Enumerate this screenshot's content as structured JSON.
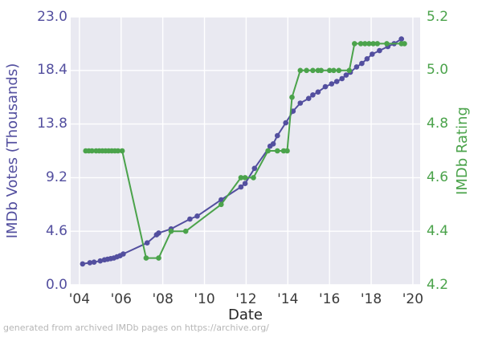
{
  "footer": {
    "text": "generated from archived IMDb pages on https://archive.org/"
  },
  "chart_data": {
    "type": "line",
    "title": "",
    "xlabel": "Date",
    "grid": true,
    "legend_position": "none",
    "plot_background": "#e9e9f1",
    "grid_color": "#ffffff",
    "x_tick_labels": [
      "'04",
      "'06",
      "'08",
      "'10",
      "'12",
      "'14",
      "'16",
      "'18",
      "'20"
    ],
    "x_tick_years": [
      2004,
      2006,
      2008,
      2010,
      2012,
      2014,
      2016,
      2018,
      2020
    ],
    "x_range": [
      2003.58,
      2020.35
    ],
    "left_axis": {
      "label": "IMDb Votes (Thousands)",
      "color": "#534f9f",
      "tick_labels": [
        "23.0",
        "18.4",
        "13.8",
        "9.2",
        "4.6",
        "0.0"
      ],
      "tick_values": [
        23.0,
        18.4,
        13.8,
        9.2,
        4.6,
        0.0
      ],
      "range": [
        0,
        23
      ]
    },
    "right_axis": {
      "label": "IMDb Rating",
      "color": "#4ba34b",
      "tick_labels": [
        "5.2",
        "5.0",
        "4.8",
        "4.6",
        "4.4",
        "4.2"
      ],
      "tick_values": [
        5.2,
        5.0,
        4.8,
        4.6,
        4.4,
        4.2
      ],
      "range": [
        4.2,
        5.2
      ]
    },
    "series": [
      {
        "name": "IMDb Votes (Thousands)",
        "axis": "left",
        "color": "#534f9f",
        "marker_radius": 3.3,
        "points": [
          [
            2004.15,
            1.8
          ],
          [
            2004.5,
            1.9
          ],
          [
            2004.7,
            1.95
          ],
          [
            2005.0,
            2.05
          ],
          [
            2005.2,
            2.15
          ],
          [
            2005.35,
            2.2
          ],
          [
            2005.5,
            2.25
          ],
          [
            2005.65,
            2.3
          ],
          [
            2005.8,
            2.4
          ],
          [
            2005.95,
            2.5
          ],
          [
            2006.1,
            2.65
          ],
          [
            2007.25,
            3.6
          ],
          [
            2007.7,
            4.3
          ],
          [
            2007.8,
            4.45
          ],
          [
            2008.4,
            4.8
          ],
          [
            2009.3,
            5.65
          ],
          [
            2009.65,
            5.9
          ],
          [
            2010.8,
            7.3
          ],
          [
            2011.75,
            8.4
          ],
          [
            2011.95,
            8.7
          ],
          [
            2012.4,
            10.0
          ],
          [
            2013.15,
            11.9
          ],
          [
            2013.3,
            12.1
          ],
          [
            2013.5,
            12.8
          ],
          [
            2013.9,
            13.9
          ],
          [
            2014.25,
            14.9
          ],
          [
            2014.6,
            15.6
          ],
          [
            2015.0,
            16.0
          ],
          [
            2015.2,
            16.3
          ],
          [
            2015.45,
            16.55
          ],
          [
            2015.8,
            17.0
          ],
          [
            2016.1,
            17.25
          ],
          [
            2016.35,
            17.45
          ],
          [
            2016.6,
            17.7
          ],
          [
            2016.8,
            18.0
          ],
          [
            2017.0,
            18.25
          ],
          [
            2017.3,
            18.7
          ],
          [
            2017.55,
            19.0
          ],
          [
            2017.8,
            19.4
          ],
          [
            2018.05,
            19.8
          ],
          [
            2018.4,
            20.1
          ],
          [
            2018.8,
            20.45
          ],
          [
            2019.1,
            20.7
          ],
          [
            2019.45,
            21.1
          ]
        ]
      },
      {
        "name": "IMDb Rating",
        "axis": "right",
        "color": "#4ba34b",
        "marker_radius": 3.3,
        "points": [
          [
            2004.3,
            4.7
          ],
          [
            2004.45,
            4.7
          ],
          [
            2004.6,
            4.7
          ],
          [
            2004.8,
            4.7
          ],
          [
            2004.95,
            4.7
          ],
          [
            2005.1,
            4.7
          ],
          [
            2005.25,
            4.7
          ],
          [
            2005.4,
            4.7
          ],
          [
            2005.55,
            4.7
          ],
          [
            2005.7,
            4.7
          ],
          [
            2005.85,
            4.7
          ],
          [
            2006.05,
            4.7
          ],
          [
            2007.2,
            4.3
          ],
          [
            2007.8,
            4.3
          ],
          [
            2008.4,
            4.4
          ],
          [
            2009.1,
            4.4
          ],
          [
            2010.8,
            4.5
          ],
          [
            2011.75,
            4.6
          ],
          [
            2011.95,
            4.6
          ],
          [
            2012.35,
            4.6
          ],
          [
            2013.05,
            4.7
          ],
          [
            2013.5,
            4.7
          ],
          [
            2013.8,
            4.7
          ],
          [
            2013.97,
            4.7
          ],
          [
            2014.2,
            4.9
          ],
          [
            2014.6,
            5.0
          ],
          [
            2014.9,
            5.0
          ],
          [
            2015.2,
            5.0
          ],
          [
            2015.45,
            5.0
          ],
          [
            2015.6,
            5.0
          ],
          [
            2016.0,
            5.0
          ],
          [
            2016.2,
            5.0
          ],
          [
            2016.45,
            5.0
          ],
          [
            2016.95,
            5.0
          ],
          [
            2017.2,
            5.1
          ],
          [
            2017.5,
            5.1
          ],
          [
            2017.7,
            5.1
          ],
          [
            2017.9,
            5.1
          ],
          [
            2018.1,
            5.1
          ],
          [
            2018.3,
            5.1
          ],
          [
            2018.75,
            5.1
          ],
          [
            2019.45,
            5.1
          ],
          [
            2019.6,
            5.1
          ]
        ]
      }
    ]
  }
}
